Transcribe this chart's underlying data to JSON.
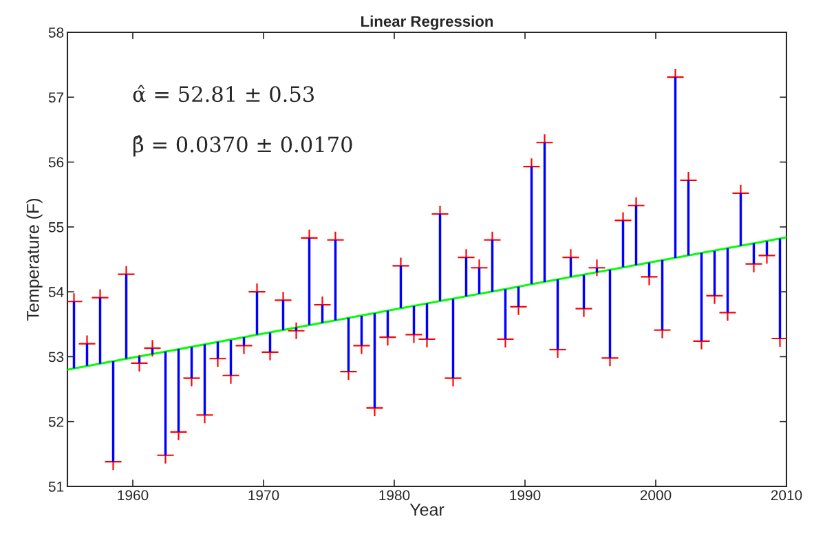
{
  "chart_data": {
    "type": "scatter",
    "title": "Linear Regression",
    "xlabel": "Year",
    "ylabel": "Temperature (F)",
    "xlim": [
      1955,
      2010
    ],
    "xticks": [
      1960,
      1970,
      1980,
      1990,
      2000,
      2010
    ],
    "ylim": [
      51,
      58
    ],
    "yticks": [
      51,
      52,
      53,
      54,
      55,
      56,
      57,
      58
    ],
    "grid": false,
    "annotations": [
      "α̂ = 52.81 ± 0.53",
      "β̂ = 0.0370 ± 0.0170"
    ],
    "series": [
      {
        "color": "#ff0000",
        "marker": "cross",
        "x": [
          1955.5,
          1956.5,
          1957.5,
          1958.5,
          1959.5,
          1960.5,
          1961.5,
          1962.5,
          1963.5,
          1964.5,
          1965.5,
          1966.5,
          1967.5,
          1968.5,
          1969.5,
          1970.5,
          1971.5,
          1972.5,
          1973.5,
          1974.5,
          1975.5,
          1976.5,
          1977.5,
          1978.5,
          1979.5,
          1980.5,
          1981.5,
          1982.5,
          1983.5,
          1984.5,
          1985.5,
          1986.5,
          1987.5,
          1988.5,
          1989.5,
          1990.5,
          1991.5,
          1992.5,
          1993.5,
          1994.5,
          1995.5,
          1996.5,
          1997.5,
          1998.5,
          1999.5,
          2000.5,
          2001.5,
          2002.5,
          2003.5,
          2004.5,
          2005.5,
          2006.5,
          2007.5,
          2008.5,
          2009.5
        ],
        "values": [
          53.85,
          53.2,
          53.91,
          51.38,
          54.27,
          52.9,
          53.13,
          51.48,
          51.84,
          52.67,
          52.1,
          52.97,
          52.71,
          53.17,
          54.0,
          53.07,
          53.87,
          53.4,
          54.83,
          53.8,
          54.8,
          52.77,
          53.17,
          52.21,
          53.3,
          54.4,
          53.34,
          53.27,
          55.2,
          52.67,
          54.53,
          54.37,
          54.8,
          53.27,
          53.77,
          55.93,
          56.3,
          53.11,
          54.53,
          53.74,
          54.37,
          52.98,
          55.1,
          55.33,
          54.23,
          53.41,
          57.31,
          55.72,
          53.24,
          53.94,
          53.68,
          55.52,
          54.43,
          54.56,
          53.28
        ],
        "errors": [
          [
            52.82,
            53.85
          ],
          [
            52.86,
            53.2
          ],
          [
            52.89,
            53.91
          ],
          [
            51.38,
            52.93
          ],
          [
            52.97,
            54.27
          ],
          [
            52.9,
            53.0
          ],
          [
            53.04,
            53.13
          ],
          [
            51.48,
            53.08
          ],
          [
            51.84,
            53.12
          ],
          [
            52.67,
            53.15
          ],
          [
            52.1,
            53.19
          ],
          [
            52.97,
            53.23
          ],
          [
            52.71,
            53.26
          ],
          [
            53.17,
            53.3
          ],
          [
            53.34,
            54.0
          ],
          [
            53.07,
            53.37
          ],
          [
            53.41,
            53.87
          ],
          [
            53.4,
            53.45
          ],
          [
            53.49,
            54.83
          ],
          [
            53.52,
            53.8
          ],
          [
            53.56,
            54.8
          ],
          [
            52.77,
            53.6
          ],
          [
            53.17,
            53.63
          ],
          [
            52.21,
            53.67
          ],
          [
            53.3,
            53.71
          ],
          [
            53.75,
            54.4
          ],
          [
            53.34,
            53.78
          ],
          [
            53.27,
            53.82
          ],
          [
            53.86,
            55.2
          ],
          [
            52.67,
            53.89
          ],
          [
            53.93,
            54.53
          ],
          [
            53.97,
            54.37
          ],
          [
            54.0,
            54.8
          ],
          [
            53.27,
            54.04
          ],
          [
            53.77,
            54.08
          ],
          [
            54.12,
            55.93
          ],
          [
            54.15,
            56.3
          ],
          [
            53.11,
            54.19
          ],
          [
            54.23,
            54.53
          ],
          [
            53.74,
            54.26
          ],
          [
            54.3,
            54.37
          ],
          [
            52.98,
            54.34
          ],
          [
            54.38,
            55.1
          ],
          [
            54.41,
            55.33
          ],
          [
            54.23,
            54.45
          ],
          [
            53.41,
            54.49
          ],
          [
            54.52,
            57.31
          ],
          [
            54.56,
            55.72
          ],
          [
            53.24,
            54.6
          ],
          [
            53.94,
            54.63
          ],
          [
            53.68,
            54.67
          ],
          [
            54.71,
            55.52
          ],
          [
            54.43,
            54.75
          ],
          [
            54.56,
            54.78
          ],
          [
            53.28,
            54.82
          ]
        ]
      },
      {
        "type": "line",
        "color": "#00ff00",
        "x": [
          1955,
          2010
        ],
        "values": [
          52.8,
          54.84
        ]
      }
    ]
  }
}
